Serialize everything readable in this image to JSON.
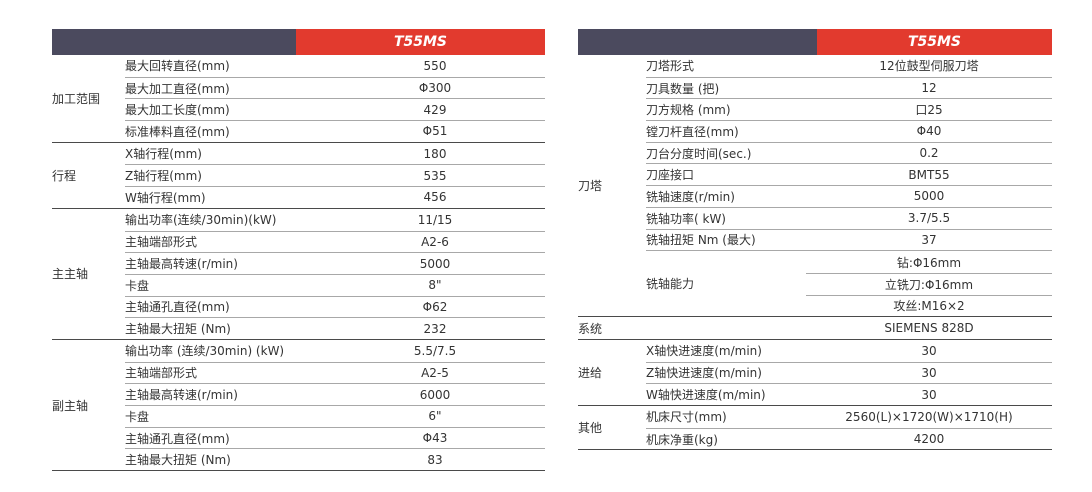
{
  "left": {
    "model": "T55MS",
    "groups": [
      {
        "category": "加工范围",
        "rows": [
          {
            "name": "最大回转直径(mm)",
            "value": "550"
          },
          {
            "name": "最大加工直径(mm)",
            "value": "Φ300"
          },
          {
            "name": "最大加工长度(mm)",
            "value": "429"
          },
          {
            "name": "标准棒料直径(mm)",
            "value": "Φ51"
          }
        ]
      },
      {
        "category": "行程",
        "rows": [
          {
            "name": "X轴行程(mm)",
            "value": "180"
          },
          {
            "name": "Z轴行程(mm)",
            "value": "535"
          },
          {
            "name": "W轴行程(mm)",
            "value": "456"
          }
        ]
      },
      {
        "category": "主主轴",
        "rows": [
          {
            "name": "输出功率(连续/30min)(kW)",
            "value": "11/15"
          },
          {
            "name": "主轴端部形式",
            "value": "A2-6"
          },
          {
            "name": "主轴最高转速(r/min)",
            "value": "5000"
          },
          {
            "name": "卡盘",
            "value": "8\""
          },
          {
            "name": "主轴通孔直径(mm)",
            "value": "Φ62"
          },
          {
            "name": "主轴最大扭矩 (Nm)",
            "value": "232"
          }
        ]
      },
      {
        "category": "副主轴",
        "rows": [
          {
            "name": "输出功率 (连续/30min) (kW)",
            "value": "5.5/7.5"
          },
          {
            "name": "主轴端部形式",
            "value": "A2-5"
          },
          {
            "name": "主轴最高转速(r/min)",
            "value": "6000"
          },
          {
            "name": "卡盘",
            "value": "6\""
          },
          {
            "name": "主轴通孔直径(mm)",
            "value": "Φ43"
          },
          {
            "name": "主轴最大扭矩 (Nm)",
            "value": "83"
          }
        ]
      }
    ]
  },
  "right": {
    "model": "T55MS",
    "turret": {
      "category": "刀塔",
      "rows": [
        {
          "name": "刀塔形式",
          "value": "12位鼓型伺服刀塔"
        },
        {
          "name": "刀具数量 (把)",
          "value": "12"
        },
        {
          "name": "刀方规格 (mm)",
          "value": "口25"
        },
        {
          "name": "镗刀杆直径(mm)",
          "value": "Φ40"
        },
        {
          "name": "刀台分度时间(sec.)",
          "value": "0.2"
        },
        {
          "name": "刀座接口",
          "value": "BMT55"
        },
        {
          "name": "铣轴速度(r/min)",
          "value": "5000"
        },
        {
          "name": "铣轴功率( kW)",
          "value": "3.7/5.5"
        },
        {
          "name": "铣轴扭矩 Nm (最大)",
          "value": "37"
        }
      ],
      "multi": {
        "name": "铣轴能力",
        "values": [
          "钻:Φ16mm",
          "立铣刀:Φ16mm",
          "攻丝:M16×2"
        ]
      }
    },
    "system": {
      "category": "系统",
      "value": "SIEMENS 828D"
    },
    "feed": {
      "category": "进给",
      "rows": [
        {
          "name": "X轴快进速度(m/min)",
          "value": "30"
        },
        {
          "name": "Z轴快进速度(m/min)",
          "value": "30"
        },
        {
          "name": "W轴快进速度(m/min)",
          "value": "30"
        }
      ]
    },
    "other": {
      "category": "其他",
      "rows": [
        {
          "name": "机床尺寸(mm)",
          "value": "2560(L)×1720(W)×1710(H)"
        },
        {
          "name": "机床净重(kg)",
          "value": "4200"
        }
      ]
    }
  }
}
